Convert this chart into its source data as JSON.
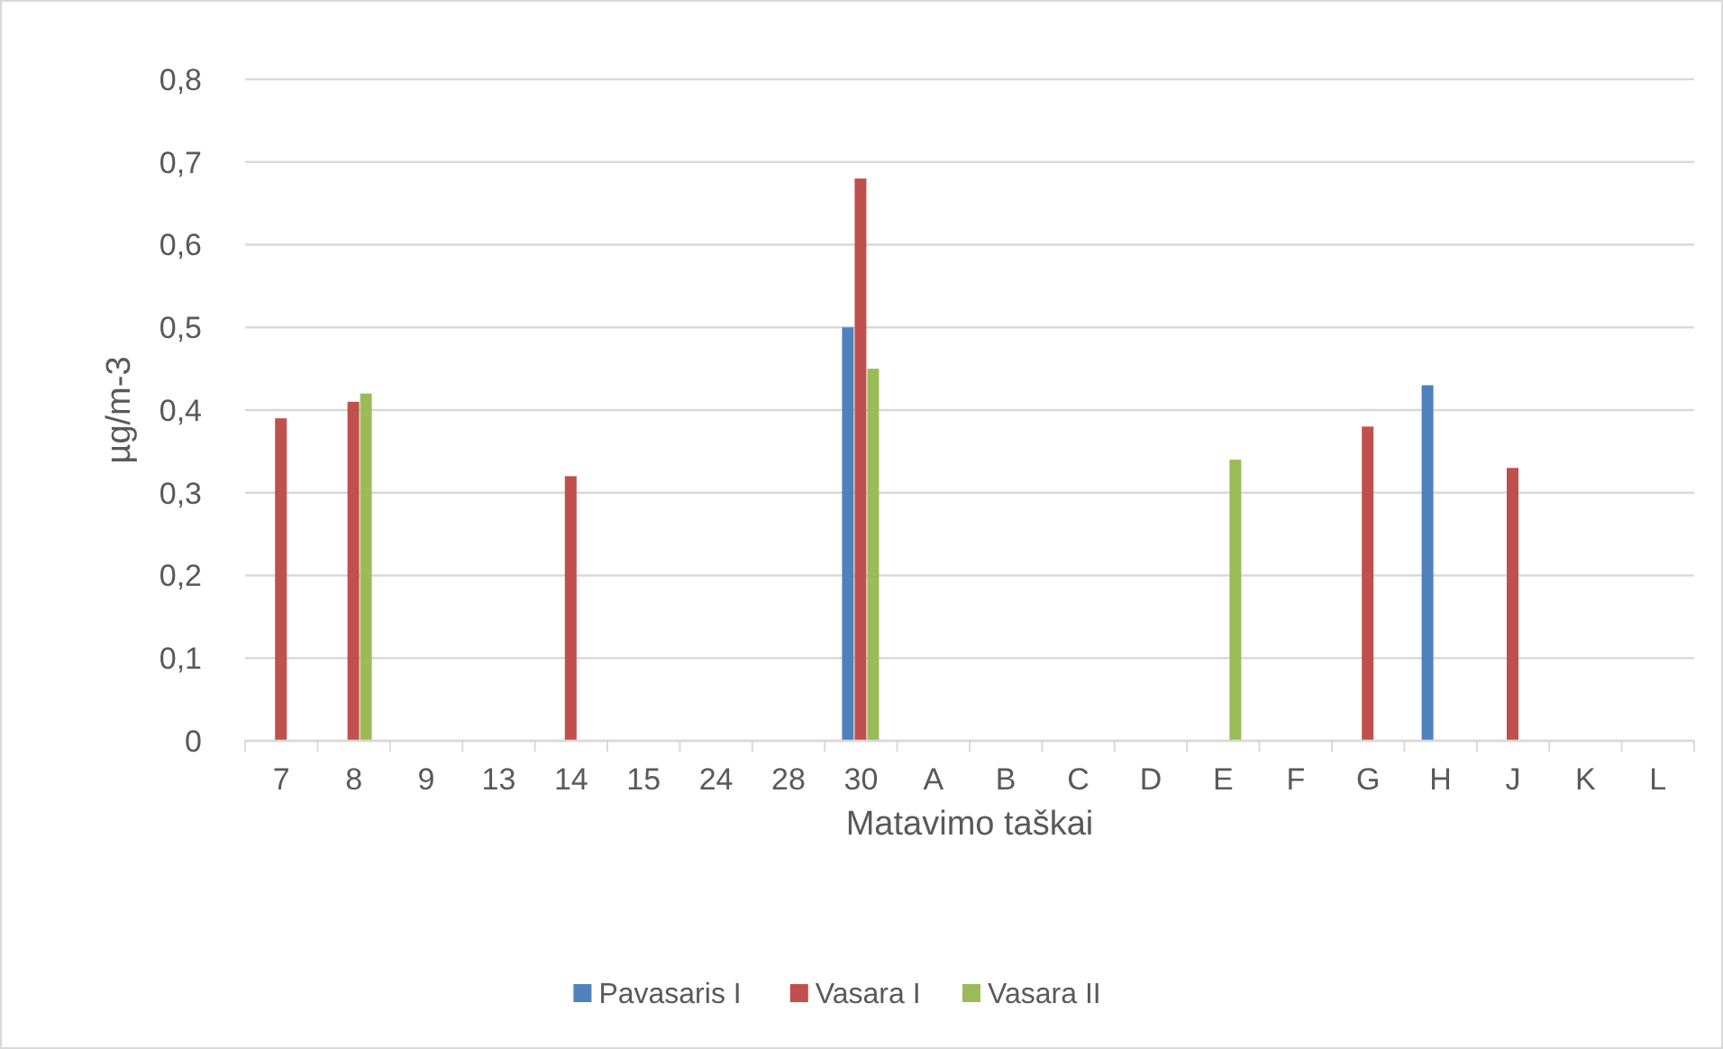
{
  "chart_data": {
    "type": "bar",
    "xlabel": "Matavimo taškai",
    "ylabel": "µg/m-3",
    "categories": [
      "7",
      "8",
      "9",
      "13",
      "14",
      "15",
      "24",
      "28",
      "30",
      "A",
      "B",
      "C",
      "D",
      "E",
      "F",
      "G",
      "H",
      "J",
      "K",
      "L"
    ],
    "series": [
      {
        "name": "Pavasaris I",
        "color": "#4f81bd",
        "values": [
          null,
          null,
          null,
          null,
          null,
          null,
          null,
          null,
          0.5,
          null,
          null,
          null,
          null,
          null,
          null,
          null,
          0.43,
          null,
          null,
          null
        ]
      },
      {
        "name": "Vasara I",
        "color": "#c0504d",
        "values": [
          0.39,
          0.41,
          null,
          null,
          0.32,
          null,
          null,
          null,
          0.68,
          null,
          null,
          null,
          null,
          null,
          null,
          0.38,
          null,
          0.33,
          null,
          null
        ]
      },
      {
        "name": "Vasara II",
        "color": "#9bbb59",
        "values": [
          null,
          0.42,
          null,
          null,
          null,
          null,
          null,
          null,
          0.45,
          null,
          null,
          null,
          null,
          0.34,
          null,
          null,
          null,
          null,
          null,
          null
        ]
      }
    ],
    "ylim": [
      0,
      0.8
    ],
    "yticks": [
      {
        "value": 0,
        "label": "0"
      },
      {
        "value": 0.1,
        "label": "0,1"
      },
      {
        "value": 0.2,
        "label": "0,2"
      },
      {
        "value": 0.3,
        "label": "0,3"
      },
      {
        "value": 0.4,
        "label": "0,4"
      },
      {
        "value": 0.5,
        "label": "0,5"
      },
      {
        "value": 0.6,
        "label": "0,6"
      },
      {
        "value": 0.7,
        "label": "0,7"
      },
      {
        "value": 0.8,
        "label": "0,8"
      }
    ],
    "grid": "y",
    "legend": "bottom"
  }
}
